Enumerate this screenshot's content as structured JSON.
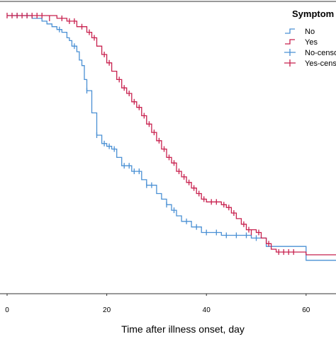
{
  "chart_data": {
    "type": "line",
    "title": "",
    "xlabel": "Time after illness onset, day",
    "ylabel": "",
    "xlim": [
      0,
      66
    ],
    "ylim": [
      0,
      1
    ],
    "x_ticks": [
      0,
      20,
      40,
      60
    ],
    "grid": false,
    "legend": {
      "title": "Symptom",
      "placement": "top-right",
      "entries": [
        {
          "label": "No",
          "series": "No",
          "kind": "step",
          "color": "#4a90d4"
        },
        {
          "label": "Yes",
          "series": "Yes",
          "kind": "step",
          "color": "#c8204e"
        },
        {
          "label": "No-censored",
          "series": "No",
          "kind": "censor",
          "color": "#4a90d4"
        },
        {
          "label": "Yes-censored",
          "series": "Yes",
          "kind": "censor",
          "color": "#c8204e"
        }
      ]
    },
    "series": [
      {
        "name": "No",
        "color": "#4a90d4",
        "steps": [
          [
            0,
            1.0
          ],
          [
            5,
            0.99
          ],
          [
            7,
            0.98
          ],
          [
            8,
            0.97
          ],
          [
            9,
            0.96
          ],
          [
            10,
            0.95
          ],
          [
            11,
            0.94
          ],
          [
            12,
            0.92
          ],
          [
            12.5,
            0.91
          ],
          [
            13,
            0.89
          ],
          [
            14,
            0.87
          ],
          [
            14.5,
            0.84
          ],
          [
            15,
            0.82
          ],
          [
            15.5,
            0.77
          ],
          [
            16,
            0.73
          ],
          [
            17,
            0.65
          ],
          [
            18,
            0.57
          ],
          [
            19,
            0.54
          ],
          [
            20,
            0.53
          ],
          [
            21,
            0.52
          ],
          [
            22,
            0.49
          ],
          [
            23,
            0.46
          ],
          [
            25,
            0.44
          ],
          [
            27,
            0.41
          ],
          [
            28,
            0.39
          ],
          [
            30,
            0.36
          ],
          [
            31,
            0.34
          ],
          [
            32,
            0.32
          ],
          [
            33,
            0.3
          ],
          [
            34,
            0.28
          ],
          [
            35,
            0.26
          ],
          [
            37,
            0.24
          ],
          [
            39,
            0.22
          ],
          [
            43,
            0.21
          ],
          [
            49,
            0.2
          ],
          [
            52,
            0.17
          ],
          [
            60,
            0.12
          ],
          [
            66,
            0.12
          ]
        ],
        "censored": [
          [
            2,
            1.0
          ],
          [
            4,
            1.0
          ],
          [
            10.5,
            0.95
          ],
          [
            13.5,
            0.89
          ],
          [
            16,
            0.73
          ],
          [
            18,
            0.57
          ],
          [
            19.5,
            0.54
          ],
          [
            20.5,
            0.53
          ],
          [
            21.5,
            0.52
          ],
          [
            23.5,
            0.46
          ],
          [
            24.5,
            0.46
          ],
          [
            25.5,
            0.44
          ],
          [
            26.5,
            0.44
          ],
          [
            28,
            0.39
          ],
          [
            29,
            0.39
          ],
          [
            32,
            0.32
          ],
          [
            33.5,
            0.3
          ],
          [
            36,
            0.26
          ],
          [
            38,
            0.24
          ],
          [
            40,
            0.22
          ],
          [
            42,
            0.22
          ],
          [
            44,
            0.21
          ],
          [
            46,
            0.21
          ],
          [
            48,
            0.21
          ],
          [
            50,
            0.2
          ]
        ]
      },
      {
        "name": "Yes",
        "color": "#c8204e",
        "steps": [
          [
            0,
            1.0
          ],
          [
            10,
            0.99
          ],
          [
            12,
            0.98
          ],
          [
            14,
            0.96
          ],
          [
            16,
            0.94
          ],
          [
            17,
            0.92
          ],
          [
            18,
            0.89
          ],
          [
            19,
            0.86
          ],
          [
            20,
            0.83
          ],
          [
            21,
            0.8
          ],
          [
            22,
            0.77
          ],
          [
            23,
            0.74
          ],
          [
            24,
            0.72
          ],
          [
            25,
            0.69
          ],
          [
            26,
            0.67
          ],
          [
            27,
            0.64
          ],
          [
            28,
            0.61
          ],
          [
            29,
            0.58
          ],
          [
            30,
            0.55
          ],
          [
            31,
            0.52
          ],
          [
            32,
            0.49
          ],
          [
            33,
            0.47
          ],
          [
            34,
            0.44
          ],
          [
            35,
            0.42
          ],
          [
            36,
            0.4
          ],
          [
            37,
            0.38
          ],
          [
            38,
            0.36
          ],
          [
            39,
            0.34
          ],
          [
            40,
            0.33
          ],
          [
            43,
            0.32
          ],
          [
            44,
            0.31
          ],
          [
            45,
            0.29
          ],
          [
            46,
            0.27
          ],
          [
            47,
            0.25
          ],
          [
            48,
            0.23
          ],
          [
            50,
            0.22
          ],
          [
            51,
            0.2
          ],
          [
            52,
            0.18
          ],
          [
            53,
            0.16
          ],
          [
            54,
            0.15
          ],
          [
            58,
            0.15
          ],
          [
            60,
            0.14
          ],
          [
            66,
            0.14
          ]
        ],
        "censored": [
          [
            0,
            1.0
          ],
          [
            1,
            1.0
          ],
          [
            2,
            1.0
          ],
          [
            3,
            1.0
          ],
          [
            4,
            1.0
          ],
          [
            5,
            1.0
          ],
          [
            6,
            1.0
          ],
          [
            7,
            1.0
          ],
          [
            8.5,
            0.99
          ],
          [
            11,
            0.99
          ],
          [
            12.5,
            0.98
          ],
          [
            13.5,
            0.98
          ],
          [
            15,
            0.96
          ],
          [
            16.5,
            0.94
          ],
          [
            17.5,
            0.92
          ],
          [
            19.5,
            0.86
          ],
          [
            20.5,
            0.83
          ],
          [
            22.5,
            0.77
          ],
          [
            23.5,
            0.74
          ],
          [
            24.5,
            0.72
          ],
          [
            25.5,
            0.69
          ],
          [
            26.5,
            0.67
          ],
          [
            27.5,
            0.64
          ],
          [
            28.5,
            0.61
          ],
          [
            29.5,
            0.58
          ],
          [
            30.5,
            0.55
          ],
          [
            31.5,
            0.52
          ],
          [
            32.5,
            0.49
          ],
          [
            33.5,
            0.47
          ],
          [
            34.5,
            0.44
          ],
          [
            35.5,
            0.42
          ],
          [
            36.5,
            0.4
          ],
          [
            37.5,
            0.38
          ],
          [
            38.5,
            0.36
          ],
          [
            39.5,
            0.34
          ],
          [
            41,
            0.33
          ],
          [
            42,
            0.33
          ],
          [
            43.5,
            0.32
          ],
          [
            44.5,
            0.31
          ],
          [
            45.5,
            0.29
          ],
          [
            47.5,
            0.25
          ],
          [
            48.5,
            0.23
          ],
          [
            49,
            0.22
          ],
          [
            50.5,
            0.22
          ],
          [
            52.5,
            0.18
          ],
          [
            54.5,
            0.15
          ],
          [
            55.5,
            0.15
          ],
          [
            56.5,
            0.15
          ],
          [
            57.5,
            0.15
          ]
        ]
      }
    ]
  }
}
